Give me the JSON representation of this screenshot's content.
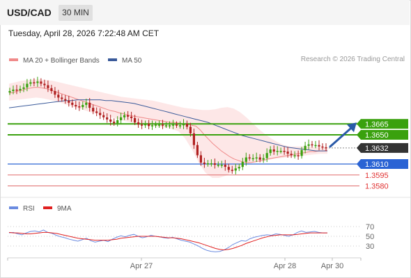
{
  "header": {
    "symbol": "USD/CAD",
    "interval": "30 MIN",
    "datetime": "Tuesday, April 28, 2026 7:22:48 AM CET",
    "credit": "Research © 2026 Trading Central"
  },
  "colors": {
    "green": "#3aa10e",
    "blue": "#2a63d4",
    "red": "#e06a6a",
    "dark": "#333333",
    "ma20": "#f08a8a",
    "ma50": "#3a5a9a",
    "band": "#fbd3d3",
    "rsi": "#6b8be0",
    "rsi_ma": "#e02020",
    "arrow": "#2a5aa8"
  },
  "chart_data": [
    {
      "type": "candlestick",
      "title": "",
      "legend": [
        "MA 20 + Bollinger Bands",
        "MA 50"
      ],
      "legend_position": "top-left",
      "x_ticks": [
        "Apr 27",
        "Apr 28",
        "Apr 30"
      ],
      "y_range": [
        1.357,
        1.373
      ],
      "levels": [
        {
          "value": 1.3665,
          "label": "1.3665",
          "style": "resistance",
          "color": "#3aa10e"
        },
        {
          "value": 1.365,
          "label": "1.3650",
          "style": "resistance",
          "color": "#3aa10e"
        },
        {
          "value": 1.3632,
          "label": "1.3632",
          "style": "last-price",
          "color": "#333333"
        },
        {
          "value": 1.361,
          "label": "1.3610",
          "style": "pivot",
          "color": "#2a63d4"
        },
        {
          "value": 1.3595,
          "label": "1.3595",
          "style": "support",
          "color": "#e06a6a"
        },
        {
          "value": 1.358,
          "label": "1.3580",
          "style": "support",
          "color": "#e06a6a"
        }
      ],
      "close": [
        1.371,
        1.3712,
        1.3711,
        1.3713,
        1.3715,
        1.372,
        1.3722,
        1.3721,
        1.3723,
        1.372,
        1.3718,
        1.3714,
        1.371,
        1.3705,
        1.3701,
        1.3699,
        1.3697,
        1.3694,
        1.3691,
        1.3689,
        1.3688,
        1.3691,
        1.3694,
        1.3687,
        1.3682,
        1.368,
        1.3677,
        1.3674,
        1.3671,
        1.3668,
        1.3666,
        1.367,
        1.3674,
        1.3677,
        1.3675,
        1.3673,
        1.3667,
        1.3664,
        1.3663,
        1.3665,
        1.3662,
        1.3663,
        1.3664,
        1.3664,
        1.3663,
        1.3663,
        1.3663,
        1.3664,
        1.3663,
        1.3663,
        1.3665,
        1.3661,
        1.3652,
        1.3636,
        1.3622,
        1.3612,
        1.361,
        1.3611,
        1.3611,
        1.3609,
        1.3609,
        1.3609,
        1.3606,
        1.3602,
        1.3601,
        1.3604,
        1.3606,
        1.3613,
        1.3619,
        1.3618,
        1.3618,
        1.3619,
        1.3616,
        1.3618,
        1.3625,
        1.363,
        1.3627,
        1.3628,
        1.3628,
        1.3627,
        1.3624,
        1.3622,
        1.3622,
        1.3621,
        1.3629,
        1.3635,
        1.3637,
        1.3636,
        1.3636,
        1.3634,
        1.3633,
        1.3632
      ],
      "ma20": [
        1.3707,
        1.3708,
        1.371,
        1.3711,
        1.3713,
        1.3714,
        1.3715,
        1.3715,
        1.3714,
        1.3713,
        1.3711,
        1.3709,
        1.3707,
        1.3705,
        1.3703,
        1.3701,
        1.3699,
        1.3697,
        1.3695,
        1.3693,
        1.3691,
        1.3689,
        1.3687,
        1.3685,
        1.3683,
        1.3682,
        1.368,
        1.3679,
        1.3677,
        1.3676,
        1.3675,
        1.3674,
        1.3673,
        1.3672,
        1.3671,
        1.367,
        1.3669,
        1.3668,
        1.3667,
        1.3667,
        1.3666,
        1.3665,
        1.3664,
        1.3663,
        1.3662,
        1.3657,
        1.365,
        1.3644,
        1.3638,
        1.3633,
        1.3628,
        1.3624,
        1.362,
        1.3617,
        1.3615,
        1.3613,
        1.3612,
        1.3612,
        1.3613,
        1.3614,
        1.3615,
        1.3617,
        1.3618,
        1.3619,
        1.362,
        1.3621,
        1.3622,
        1.3623,
        1.3624,
        1.3625,
        1.3626,
        1.3627,
        1.3627,
        1.3628,
        1.3628,
        1.3629
      ],
      "ma50": [
        1.3687,
        1.3688,
        1.3689,
        1.369,
        1.3691,
        1.3692,
        1.3693,
        1.3694,
        1.3695,
        1.3696,
        1.3697,
        1.3697,
        1.3698,
        1.3698,
        1.3698,
        1.3698,
        1.3698,
        1.3697,
        1.3697,
        1.3696,
        1.3695,
        1.3694,
        1.3693,
        1.3691,
        1.3689,
        1.3687,
        1.3685,
        1.3683,
        1.3681,
        1.3679,
        1.3677,
        1.3675,
        1.3673,
        1.3671,
        1.3669,
        1.3667,
        1.3664,
        1.3661,
        1.3658,
        1.3655,
        1.3652,
        1.3649,
        1.3647,
        1.3645,
        1.3643,
        1.3641,
        1.3639,
        1.3637,
        1.3635,
        1.3633,
        1.3632,
        1.3631,
        1.363,
        1.3629,
        1.3628,
        1.3628,
        1.3628
      ],
      "bollinger_upper": [
        1.372,
        1.3722,
        1.3724,
        1.3725,
        1.3726,
        1.3726,
        1.3725,
        1.3724,
        1.3722,
        1.372,
        1.3718,
        1.3716,
        1.3714,
        1.3712,
        1.371,
        1.3708,
        1.3706,
        1.3704,
        1.3702,
        1.3701,
        1.37,
        1.3699,
        1.3698,
        1.3697,
        1.3695,
        1.3693,
        1.3691,
        1.3689,
        1.3687,
        1.3686,
        1.3685,
        1.3684,
        1.3684,
        1.3685,
        1.3687,
        1.3688,
        1.3686,
        1.3681,
        1.3674,
        1.3666,
        1.3658,
        1.3651,
        1.3645,
        1.364,
        1.3636,
        1.3634,
        1.3634,
        1.3634,
        1.3634,
        1.3633,
        1.3633,
        1.3633
      ],
      "bollinger_lower": [
        1.3697,
        1.3698,
        1.3699,
        1.37,
        1.3701,
        1.37,
        1.3698,
        1.3696,
        1.3693,
        1.369,
        1.3687,
        1.3684,
        1.3681,
        1.3679,
        1.3677,
        1.3674,
        1.3672,
        1.3669,
        1.3667,
        1.3665,
        1.3663,
        1.3662,
        1.3661,
        1.366,
        1.3658,
        1.3655,
        1.3645,
        1.363,
        1.3612,
        1.3598,
        1.3591,
        1.3591,
        1.3594,
        1.3599,
        1.3605,
        1.361,
        1.3612,
        1.3614,
        1.3615,
        1.3617,
        1.3618,
        1.3619,
        1.362,
        1.3621,
        1.3622,
        1.3623,
        1.3624,
        1.3624
      ],
      "forecast": {
        "from": 1.3632,
        "to": 1.3665
      }
    },
    {
      "type": "line",
      "legend": [
        "RSI",
        "9MA"
      ],
      "legend_position": "top-left",
      "y_ticks": [
        "70",
        "50",
        "30"
      ],
      "y_range": [
        10,
        90
      ],
      "series": [
        {
          "name": "RSI",
          "values": [
            57,
            58,
            55,
            53,
            57,
            60,
            61,
            59,
            63,
            58,
            56,
            52,
            49,
            47,
            44,
            42,
            40,
            43,
            46,
            41,
            38,
            40,
            42,
            39,
            44,
            48,
            51,
            49,
            52,
            54,
            50,
            47,
            49,
            52,
            50,
            49,
            47,
            46,
            48,
            45,
            42,
            40,
            38,
            34,
            30,
            25,
            21,
            19,
            18,
            19,
            22,
            27,
            33,
            37,
            41,
            40,
            45,
            48,
            50,
            52,
            53,
            52,
            55,
            54,
            52,
            50,
            53,
            58,
            61,
            58,
            59,
            60,
            58,
            57,
            57
          ]
        },
        {
          "name": "9MA",
          "values": [
            58,
            57,
            57,
            56,
            55,
            55,
            56,
            57,
            58,
            58,
            57,
            56,
            54,
            52,
            50,
            48,
            46,
            45,
            44,
            43,
            42,
            42,
            42,
            42,
            43,
            44,
            46,
            47,
            48,
            49,
            50,
            50,
            50,
            50,
            50,
            49,
            48,
            47,
            47,
            46,
            45,
            43,
            41,
            39,
            37,
            34,
            31,
            28,
            25,
            23,
            22,
            23,
            25,
            28,
            31,
            35,
            38,
            41,
            44,
            47,
            49,
            51,
            52,
            53,
            53,
            53,
            53,
            54,
            55,
            56,
            57,
            57,
            57,
            57,
            57
          ]
        }
      ]
    }
  ]
}
